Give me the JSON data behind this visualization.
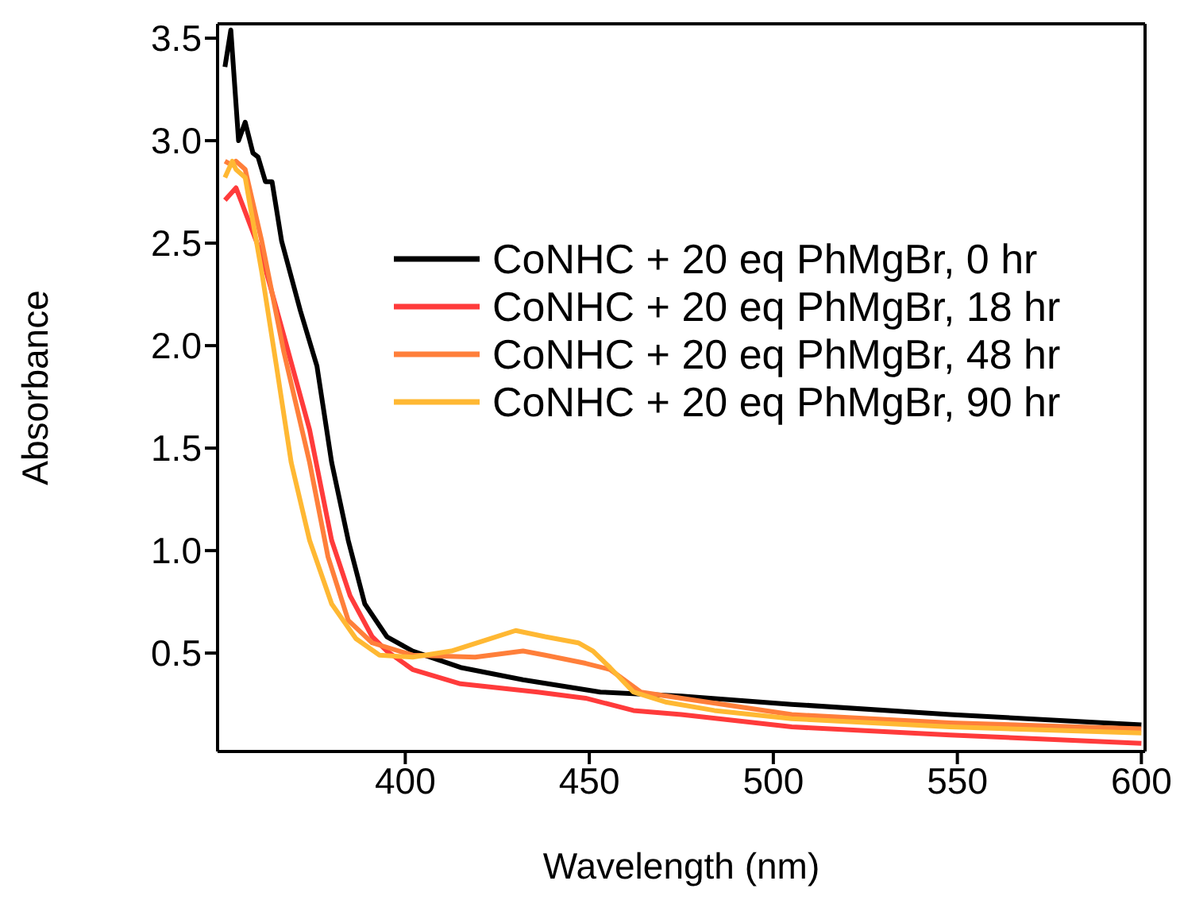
{
  "chart_data": {
    "type": "line",
    "xlabel": "Wavelength (nm)",
    "ylabel": "Absorbance",
    "xlim": [
      349,
      601
    ],
    "ylim": [
      0.02,
      3.57
    ],
    "xticks": [
      400,
      450,
      500,
      550,
      600
    ],
    "yticks": [
      0.5,
      {
        "value": 1,
        "label": "1.0"
      },
      1.5,
      {
        "value": 2,
        "label": "2.0"
      },
      2.5,
      {
        "value": 3,
        "label": "3.0"
      },
      3.5
    ],
    "grid": false,
    "legend": "top right",
    "marker": "none",
    "line_style": "solid",
    "series": [
      {
        "name": "CoNHC + 20 eq PhMgBr, 0 hr",
        "color": "#000000",
        "x": [
          351,
          352.6,
          354.7,
          356.5,
          358.6,
          360,
          362,
          363.8,
          366.4,
          371.5,
          376,
          380,
          384.5,
          389,
          395,
          402,
          415,
          432,
          453,
          475,
          505,
          548,
          600
        ],
        "values": [
          3.36,
          3.54,
          3.0,
          3.09,
          2.94,
          2.92,
          2.8,
          2.8,
          2.51,
          2.17,
          1.9,
          1.43,
          1.05,
          0.74,
          0.58,
          0.51,
          0.43,
          0.37,
          0.31,
          0.29,
          0.25,
          0.2,
          0.15
        ]
      },
      {
        "name": "CoNHC + 20 eq PhMgBr, 18 hr",
        "color": "#ff3b3b",
        "x": [
          351,
          354,
          355.5,
          361,
          367,
          374,
          380,
          385,
          391,
          395,
          402,
          415,
          436,
          449,
          462,
          475,
          505,
          548,
          600
        ],
        "values": [
          2.71,
          2.77,
          2.7,
          2.44,
          2.05,
          1.59,
          1.05,
          0.78,
          0.58,
          0.51,
          0.42,
          0.35,
          0.31,
          0.28,
          0.22,
          0.2,
          0.14,
          0.1,
          0.06
        ]
      },
      {
        "name": "CoNHC + 20 eq PhMgBr, 48 hr",
        "color": "#ff7f3a",
        "x": [
          351,
          353,
          354,
          356.5,
          361,
          367,
          374,
          379,
          384.5,
          391,
          402,
          419,
          432,
          438,
          449,
          455.6,
          464,
          475,
          505,
          548,
          600
        ],
        "values": [
          2.9,
          2.88,
          2.9,
          2.86,
          2.51,
          1.97,
          1.43,
          0.97,
          0.66,
          0.55,
          0.49,
          0.48,
          0.51,
          0.49,
          0.45,
          0.42,
          0.31,
          0.28,
          0.2,
          0.16,
          0.13
        ]
      },
      {
        "name": "CoNHC + 20 eq PhMgBr, 90 hr",
        "color": "#ffb833",
        "x": [
          351,
          353,
          354,
          356.5,
          361,
          365,
          369,
          374,
          380,
          386.6,
          393,
          402,
          412.5,
          423,
          430,
          438,
          447,
          451,
          455.6,
          462,
          471,
          484,
          505,
          548,
          600
        ],
        "values": [
          2.82,
          2.9,
          2.86,
          2.82,
          2.36,
          1.9,
          1.43,
          1.05,
          0.74,
          0.57,
          0.49,
          0.48,
          0.51,
          0.57,
          0.61,
          0.58,
          0.55,
          0.51,
          0.43,
          0.31,
          0.26,
          0.22,
          0.18,
          0.14,
          0.11
        ]
      }
    ]
  }
}
